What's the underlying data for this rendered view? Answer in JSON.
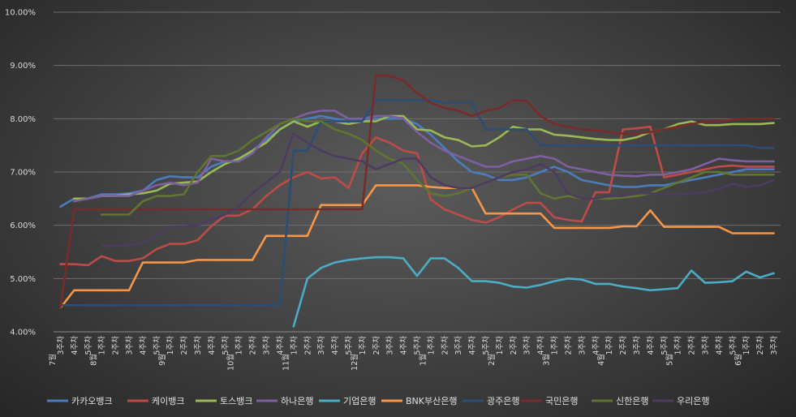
{
  "chart_data": {
    "type": "line",
    "title": "",
    "xlabel": "",
    "ylabel": "",
    "ylim": [
      4.0,
      10.0
    ],
    "yticks": [
      "4.00%",
      "5.00%",
      "6.00%",
      "7.00%",
      "8.00%",
      "9.00%",
      "10.00%"
    ],
    "grid": true,
    "legend": "bottom",
    "x": [
      "3주차",
      "4주차",
      "5주차",
      "1주차",
      "2주차",
      "3주차",
      "4주차",
      "5주차",
      "1주차",
      "2주차",
      "3주차",
      "4주차",
      "5주차",
      "1주차",
      "2주차",
      "3주차",
      "4주차",
      "1주차",
      "2주차",
      "3주차",
      "4주차",
      "5주차",
      "1주차",
      "2주차",
      "3주차",
      "4주차",
      "5주차",
      "1주차",
      "2주차",
      "3주차",
      "4주차",
      "5주차",
      "1주차",
      "2주차",
      "3주차",
      "4주차",
      "1주차",
      "2주차",
      "3주차",
      "4주차",
      "1주차",
      "2주차",
      "3주차",
      "4주차",
      "5주차",
      "1주차",
      "2주차",
      "3주차",
      "4주차",
      "5주차",
      "1주차",
      "2주차",
      "3주차"
    ],
    "month_labels": [
      {
        "index": 0,
        "label": "7월"
      },
      {
        "index": 3,
        "label": "8월"
      },
      {
        "index": 8,
        "label": "9월"
      },
      {
        "index": 13,
        "label": "10월"
      },
      {
        "index": 17,
        "label": "11월"
      },
      {
        "index": 22,
        "label": "12월"
      },
      {
        "index": 27,
        "label": "1월"
      },
      {
        "index": 32,
        "label": "2월"
      },
      {
        "index": 36,
        "label": "3월"
      },
      {
        "index": 40,
        "label": "4월"
      },
      {
        "index": 45,
        "label": "5월"
      },
      {
        "index": 50,
        "label": "6월"
      }
    ],
    "series": [
      {
        "name": "카카오뱅크",
        "color": "#4a7dbf",
        "values": [
          6.35,
          6.5,
          6.5,
          6.58,
          6.58,
          6.6,
          6.65,
          6.85,
          6.92,
          6.9,
          6.9,
          7.1,
          7.2,
          7.2,
          7.4,
          7.6,
          7.8,
          7.95,
          8.0,
          8.05,
          8.0,
          7.95,
          7.95,
          8.0,
          8.0,
          8.0,
          7.9,
          7.7,
          7.45,
          7.2,
          7.0,
          6.95,
          6.85,
          6.85,
          6.9,
          7.0,
          7.1,
          7.0,
          6.85,
          6.8,
          6.75,
          6.72,
          6.72,
          6.75,
          6.75,
          6.8,
          6.85,
          6.9,
          6.95,
          7.0,
          7.05,
          7.05,
          7.05
        ]
      },
      {
        "name": "케이뱅크",
        "color": "#be4b48",
        "values": [
          5.27,
          5.27,
          5.25,
          5.42,
          5.33,
          5.33,
          5.38,
          5.55,
          5.65,
          5.65,
          5.72,
          5.98,
          6.18,
          6.18,
          6.3,
          6.55,
          6.75,
          6.9,
          7.0,
          6.88,
          6.9,
          6.7,
          7.35,
          7.65,
          7.55,
          7.4,
          7.35,
          6.48,
          6.3,
          6.2,
          6.1,
          6.05,
          6.15,
          6.3,
          6.42,
          6.42,
          6.15,
          6.1,
          6.07,
          6.62,
          6.62,
          7.8,
          7.82,
          7.85,
          6.9,
          6.95,
          7.0,
          7.05,
          7.1,
          7.12,
          7.1,
          7.1,
          7.1
        ]
      },
      {
        "name": "토스뱅크",
        "color": "#98b954",
        "values": [
          null,
          6.5,
          6.5,
          6.55,
          6.55,
          6.58,
          6.6,
          6.65,
          6.78,
          6.8,
          6.82,
          7.0,
          7.15,
          7.25,
          7.4,
          7.55,
          7.8,
          7.95,
          7.85,
          7.95,
          7.95,
          7.9,
          7.95,
          7.95,
          8.05,
          8.05,
          7.8,
          7.78,
          7.65,
          7.6,
          7.48,
          7.5,
          7.65,
          7.85,
          7.8,
          7.8,
          7.7,
          7.68,
          7.65,
          7.62,
          7.6,
          7.6,
          7.65,
          7.75,
          7.8,
          7.9,
          7.95,
          7.88,
          7.88,
          7.9,
          7.9,
          7.9,
          7.92
        ]
      },
      {
        "name": "하나은행",
        "color": "#7d60a0",
        "values": [
          null,
          6.45,
          6.5,
          6.55,
          6.55,
          6.55,
          6.65,
          6.75,
          6.8,
          6.75,
          6.8,
          7.25,
          7.2,
          7.2,
          7.35,
          7.65,
          7.9,
          8.0,
          8.1,
          8.15,
          8.15,
          8.0,
          8.0,
          8.05,
          8.05,
          8.0,
          7.75,
          7.55,
          7.4,
          7.3,
          7.2,
          7.1,
          7.1,
          7.2,
          7.25,
          7.3,
          7.25,
          7.1,
          7.05,
          7.0,
          6.95,
          6.93,
          6.92,
          6.95,
          6.95,
          7.0,
          7.05,
          7.15,
          7.25,
          7.22,
          7.2,
          7.2,
          7.2
        ]
      },
      {
        "name": "기업은행",
        "color": "#4bacc6",
        "values": [
          null,
          null,
          null,
          null,
          null,
          null,
          null,
          null,
          null,
          null,
          null,
          null,
          null,
          null,
          null,
          null,
          null,
          4.1,
          5.0,
          5.2,
          5.3,
          5.35,
          5.38,
          5.4,
          5.4,
          5.38,
          5.05,
          5.38,
          5.38,
          5.2,
          4.95,
          4.95,
          4.92,
          4.85,
          4.83,
          4.88,
          4.95,
          5.0,
          4.98,
          4.9,
          4.9,
          4.85,
          4.82,
          4.78,
          4.8,
          4.82,
          5.15,
          4.92,
          4.93,
          4.95,
          5.13,
          5.02,
          5.1
        ]
      },
      {
        "name": "BNK부산은행",
        "color": "#f79646",
        "values": [
          4.45,
          4.78,
          4.78,
          4.78,
          4.78,
          4.78,
          5.3,
          5.3,
          5.3,
          5.3,
          5.35,
          5.35,
          5.35,
          5.35,
          5.35,
          5.8,
          5.8,
          5.8,
          5.8,
          6.38,
          6.38,
          6.38,
          6.38,
          6.75,
          6.75,
          6.75,
          6.75,
          6.72,
          6.7,
          6.7,
          6.7,
          6.22,
          6.22,
          6.22,
          6.22,
          6.22,
          5.95,
          5.95,
          5.95,
          5.95,
          5.95,
          5.98,
          5.98,
          6.28,
          5.97,
          5.97,
          5.97,
          5.97,
          5.97,
          5.85,
          5.85,
          5.85,
          5.85
        ]
      },
      {
        "name": "광주은행",
        "color": "#2c4d75",
        "values": [
          4.5,
          4.5,
          4.5,
          4.5,
          4.5,
          4.5,
          4.5,
          4.5,
          4.5,
          4.5,
          4.5,
          4.5,
          4.5,
          4.5,
          4.5,
          4.5,
          4.5,
          7.4,
          7.4,
          7.95,
          7.95,
          7.95,
          7.95,
          8.35,
          8.35,
          8.35,
          8.35,
          8.35,
          8.3,
          8.3,
          8.3,
          7.8,
          7.8,
          7.8,
          7.8,
          7.5,
          7.5,
          7.5,
          7.5,
          7.5,
          7.5,
          7.5,
          7.5,
          7.5,
          7.5,
          7.5,
          7.5,
          7.5,
          7.5,
          7.5,
          7.5,
          7.45,
          7.45
        ]
      },
      {
        "name": "국민은행",
        "color": "#772c2a",
        "values": [
          4.45,
          6.3,
          6.3,
          6.3,
          6.3,
          6.3,
          6.3,
          6.3,
          6.3,
          6.3,
          6.3,
          6.3,
          6.3,
          6.3,
          6.3,
          6.3,
          6.3,
          6.3,
          6.3,
          6.3,
          6.3,
          6.3,
          6.3,
          8.82,
          8.8,
          8.72,
          8.48,
          8.3,
          8.2,
          8.15,
          8.05,
          8.15,
          8.2,
          8.35,
          8.33,
          8.05,
          7.9,
          7.85,
          7.8,
          7.78,
          7.75,
          7.72,
          7.72,
          7.75,
          7.8,
          7.85,
          7.9,
          7.95,
          7.95,
          7.98,
          8.0,
          8.0,
          8.0
        ]
      },
      {
        "name": "신한은행",
        "color": "#5f7530",
        "values": [
          null,
          null,
          null,
          6.2,
          6.2,
          6.2,
          6.45,
          6.55,
          6.55,
          6.58,
          7.0,
          7.3,
          7.3,
          7.4,
          7.6,
          7.75,
          7.9,
          8.0,
          7.95,
          7.95,
          7.8,
          7.72,
          7.6,
          7.4,
          7.25,
          7.15,
          6.85,
          6.6,
          6.55,
          6.6,
          6.7,
          6.8,
          6.9,
          6.95,
          6.95,
          6.6,
          6.5,
          6.55,
          6.5,
          6.5,
          6.5,
          6.52,
          6.55,
          6.6,
          6.7,
          6.8,
          6.9,
          7.0,
          7.0,
          6.95,
          6.95,
          6.95,
          6.95
        ]
      },
      {
        "name": "우리은행",
        "color": "#4d3b62",
        "values": [
          null,
          null,
          null,
          5.6,
          5.62,
          5.62,
          5.68,
          5.8,
          5.98,
          5.98,
          6.0,
          6.1,
          6.2,
          6.35,
          6.6,
          6.8,
          7.0,
          7.72,
          7.55,
          7.4,
          7.3,
          7.25,
          7.2,
          7.05,
          7.15,
          7.25,
          7.25,
          6.9,
          6.75,
          6.7,
          6.7,
          6.8,
          6.9,
          7.0,
          7.05,
          7.15,
          7.0,
          6.6,
          6.5,
          6.5,
          6.55,
          6.55,
          6.6,
          6.6,
          6.58,
          6.58,
          6.6,
          6.62,
          6.68,
          6.78,
          6.72,
          6.75,
          6.85
        ]
      }
    ]
  }
}
